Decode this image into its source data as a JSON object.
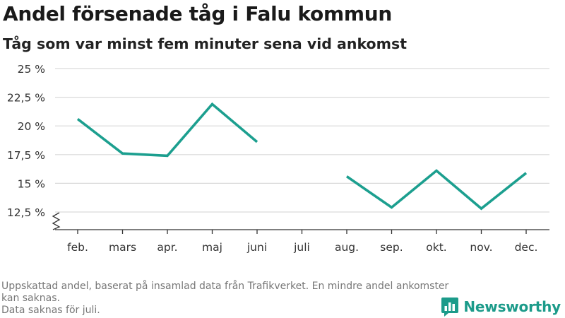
{
  "title": "Andel försenade tåg i Falu kommun",
  "subtitle": "Tåg som var minst fem minuter sena vid ankomst",
  "footnote": {
    "line1": "Uppskattad andel, baserat på insamlad data från Trafikverket. En mindre andel ankomster kan saknas.",
    "line2": "Data saknas för juli."
  },
  "brand": {
    "name": "Newsworthy",
    "logo_icon": "bar-chart-speech-icon",
    "color": "#1c9b8a"
  },
  "chart_data": {
    "type": "line",
    "categories": [
      "feb.",
      "mars",
      "apr.",
      "maj",
      "juni",
      "juli",
      "aug.",
      "sep.",
      "okt.",
      "nov.",
      "dec."
    ],
    "series": [
      {
        "values": [
          20.6,
          17.6,
          17.4,
          21.9,
          18.6,
          null,
          15.6,
          12.9,
          16.1,
          12.8,
          15.9
        ]
      }
    ],
    "yticks": [
      12.5,
      15,
      17.5,
      20,
      22.5,
      25
    ],
    "ytick_labels": [
      "12,5 %",
      "15 %",
      "17,5 %",
      "20 %",
      "22,5 %",
      "25 %"
    ],
    "ylim": [
      12.5,
      25
    ],
    "axis_break": true,
    "grid": true,
    "line_color": "#1c9f8f",
    "grid_color": "#d9d9d9"
  }
}
